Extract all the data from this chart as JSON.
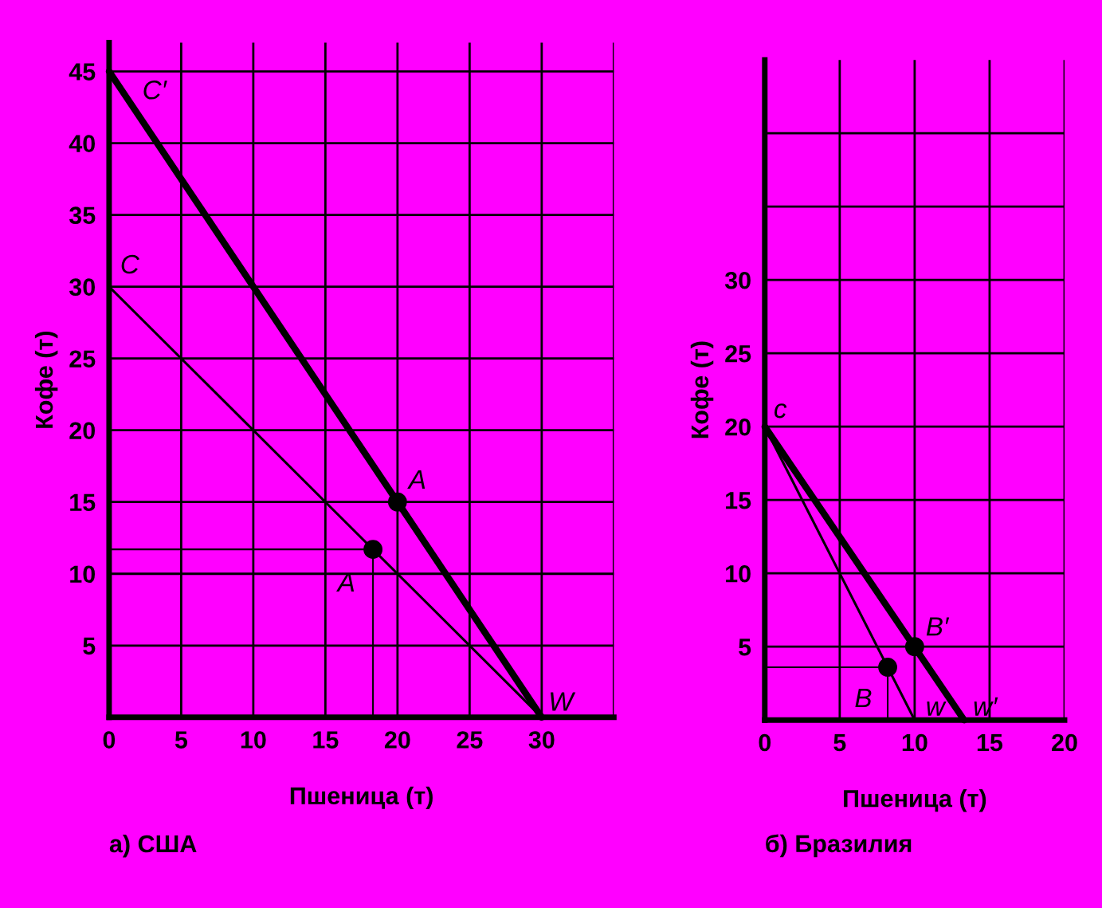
{
  "chart_data": [
    {
      "type": "line",
      "title": "а) США",
      "xlabel": "Пшеница (т)",
      "ylabel": "Кофе (т)",
      "xlim": [
        0,
        35
      ],
      "ylim": [
        0,
        47
      ],
      "xticks": [
        0,
        5,
        10,
        15,
        20,
        25,
        30,
        {
          "value": 35,
          "label": null
        }
      ],
      "yticks": [
        5,
        10,
        15,
        20,
        25,
        30,
        35,
        40,
        45
      ],
      "grid": true,
      "series": [
        {
          "color": "#000000",
          "x": [
            0,
            30
          ],
          "values": [
            30,
            0
          ]
        },
        {
          "color": "#000000",
          "x": [
            0,
            30
          ],
          "values": [
            45,
            0
          ]
        },
        {
          "color": "#000000",
          "x": [
            0,
            18.3,
            18.3
          ],
          "values": [
            11.7,
            11.7,
            0
          ]
        },
        {
          "type": "scatter",
          "color": "#000000",
          "marker": "circle",
          "x": [
            18.3,
            20
          ],
          "values": [
            11.7,
            15
          ]
        }
      ],
      "annotations": [
        {
          "text": "C′",
          "x": 0,
          "y": 45
        },
        {
          "text": "C",
          "x": 0,
          "y": 30
        },
        {
          "text": "A",
          "x": 20,
          "y": 15
        },
        {
          "text": "A",
          "x": 18.3,
          "y": 11.7
        },
        {
          "text": "W",
          "x": 30,
          "y": 0
        }
      ]
    },
    {
      "type": "line",
      "title": "б) Бразилия",
      "xlabel": "Пшеница (т)",
      "ylabel": "Кофе (т)",
      "xlim": [
        0,
        20
      ],
      "ylim": [
        0,
        45
      ],
      "xticks": [
        0,
        5,
        10,
        15,
        20
      ],
      "yticks": [
        5,
        10,
        15,
        20,
        25,
        30,
        {
          "value": 35,
          "label": null
        },
        {
          "value": 40,
          "label": null
        }
      ],
      "grid": true,
      "series": [
        {
          "color": "#000000",
          "x": [
            0,
            10
          ],
          "values": [
            20,
            0
          ]
        },
        {
          "color": "#000000",
          "x": [
            0,
            13.3
          ],
          "values": [
            20,
            0
          ]
        },
        {
          "color": "#000000",
          "x": [
            0,
            8.2,
            8.2
          ],
          "values": [
            3.6,
            3.6,
            0
          ]
        },
        {
          "type": "scatter",
          "color": "#000000",
          "marker": "circle",
          "x": [
            8.2,
            10
          ],
          "values": [
            3.6,
            5
          ]
        }
      ],
      "annotations": [
        {
          "text": "c",
          "x": 0,
          "y": 20
        },
        {
          "text": "B′",
          "x": 10,
          "y": 5
        },
        {
          "text": "B",
          "x": 8.2,
          "y": 3.6
        },
        {
          "text": "w",
          "x": 10,
          "y": 0
        },
        {
          "text": "w′",
          "x": 13.3,
          "y": 0
        }
      ]
    }
  ]
}
